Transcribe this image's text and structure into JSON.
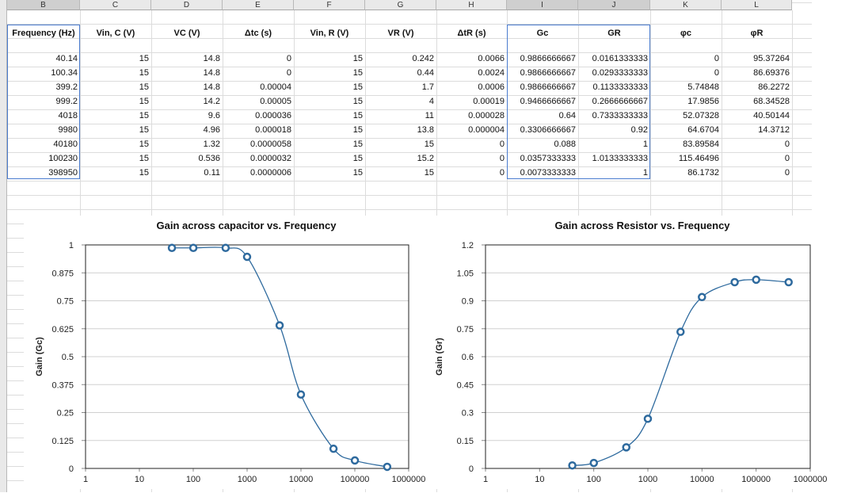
{
  "spreadsheet": {
    "column_letters": [
      "B",
      "C",
      "D",
      "E",
      "F",
      "G",
      "H",
      "I",
      "J",
      "K",
      "L"
    ],
    "headers": {
      "B": "Frequency (Hz)",
      "C": "Vin, C (V)",
      "D": "VC (V)",
      "E": "Δtc (s)",
      "F": "Vin, R (V)",
      "G": "VR (V)",
      "H": "ΔtR (s)",
      "I": "Gc",
      "J": "GR",
      "K": "φc",
      "L": "φR"
    },
    "rows": [
      [
        "40.14",
        "15",
        "14.8",
        "0",
        "15",
        "0.242",
        "0.0066",
        "0.9866666667",
        "0.0161333333",
        "0",
        "95.37264"
      ],
      [
        "100.34",
        "15",
        "14.8",
        "0",
        "15",
        "0.44",
        "0.0024",
        "0.9866666667",
        "0.0293333333",
        "0",
        "86.69376"
      ],
      [
        "399.2",
        "15",
        "14.8",
        "0.00004",
        "15",
        "1.7",
        "0.0006",
        "0.9866666667",
        "0.1133333333",
        "5.74848",
        "86.2272"
      ],
      [
        "999.2",
        "15",
        "14.2",
        "0.00005",
        "15",
        "4",
        "0.00019",
        "0.9466666667",
        "0.2666666667",
        "17.9856",
        "68.34528"
      ],
      [
        "4018",
        "15",
        "9.6",
        "0.000036",
        "15",
        "11",
        "0.000028",
        "0.64",
        "0.7333333333",
        "52.07328",
        "40.50144"
      ],
      [
        "9980",
        "15",
        "4.96",
        "0.000018",
        "15",
        "13.8",
        "0.000004",
        "0.3306666667",
        "0.92",
        "64.6704",
        "14.3712"
      ],
      [
        "40180",
        "15",
        "1.32",
        "0.0000058",
        "15",
        "15",
        "0",
        "0.088",
        "1",
        "83.89584",
        "0"
      ],
      [
        "100230",
        "15",
        "0.536",
        "0.0000032",
        "15",
        "15.2",
        "0",
        "0.0357333333",
        "1.0133333333",
        "115.46496",
        "0"
      ],
      [
        "398950",
        "15",
        "0.11",
        "0.0000006",
        "15",
        "15",
        "0",
        "0.0073333333",
        "1",
        "86.1732",
        "0"
      ]
    ]
  },
  "chart_data": [
    {
      "type": "scatter",
      "title": "Gain across capacitor vs. Frequency",
      "xlabel": "",
      "ylabel": "Gain (Gc)",
      "xscale": "log",
      "xlim": [
        1,
        1000000
      ],
      "ylim": [
        0,
        1
      ],
      "x_ticks": [
        "1",
        "10",
        "100",
        "1000",
        "10000",
        "100000",
        "1000000"
      ],
      "y_ticks": [
        "0",
        "0.125",
        "0.25",
        "0.375",
        "0.5",
        "0.625",
        "0.75",
        "0.875",
        "1"
      ],
      "x": [
        40.14,
        100.34,
        399.2,
        999.2,
        4018,
        9980,
        40180,
        100230,
        398950
      ],
      "y": [
        0.9867,
        0.9867,
        0.9867,
        0.9467,
        0.64,
        0.3307,
        0.088,
        0.0357,
        0.0073
      ],
      "grid": "horizontal",
      "color": "#2e6a9e"
    },
    {
      "type": "scatter",
      "title": "Gain across Resistor vs. Frequency",
      "xlabel": "",
      "ylabel": "Gain (Gr)",
      "xscale": "log",
      "xlim": [
        1,
        1000000
      ],
      "ylim": [
        0,
        1.2
      ],
      "x_ticks": [
        "1",
        "10",
        "100",
        "1000",
        "10000",
        "100000",
        "1000000"
      ],
      "y_ticks": [
        "0",
        "0.15",
        "0.3",
        "0.45",
        "0.6",
        "0.75",
        "0.9",
        "1.05",
        "1.2"
      ],
      "x": [
        40.14,
        100.34,
        399.2,
        999.2,
        4018,
        9980,
        40180,
        100230,
        398950
      ],
      "y": [
        0.0161,
        0.0293,
        0.1133,
        0.2667,
        0.7333,
        0.92,
        1.0,
        1.0133,
        1.0
      ],
      "grid": "horizontal",
      "color": "#2e6a9e"
    }
  ]
}
